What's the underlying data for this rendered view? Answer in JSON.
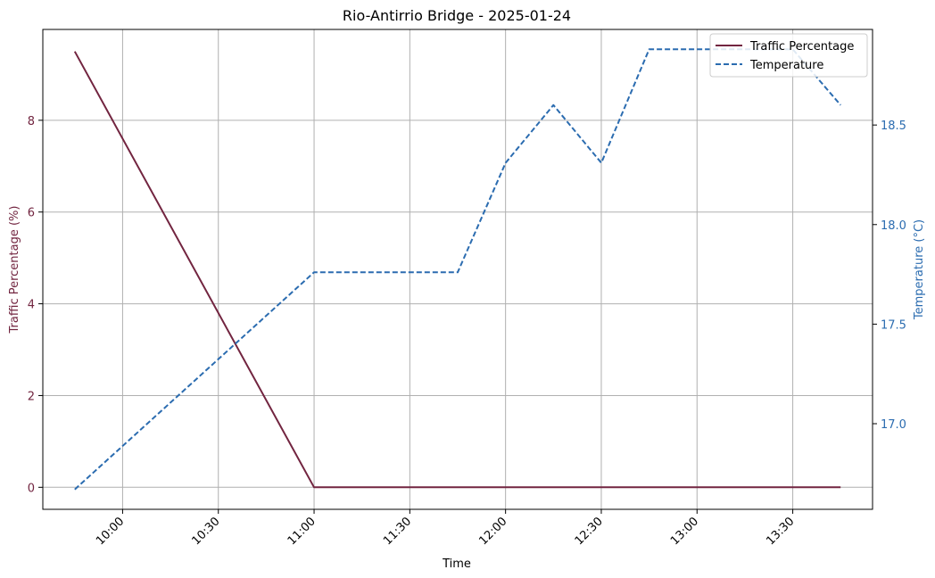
{
  "chart_data": {
    "type": "line",
    "title": "Rio-Antirrio Bridge - 2025-01-24",
    "xlabel": "Time",
    "y_left_label": "Traffic Percentage (%)",
    "y_right_label": "Temperature (°C)",
    "x_tick_labels": [
      "10:00",
      "10:30",
      "11:00",
      "11:30",
      "12:00",
      "12:30",
      "13:00",
      "13:30"
    ],
    "x_ticks": [
      "10:00",
      "10:30",
      "11:00",
      "11:30",
      "12:00",
      "12:30",
      "13:00",
      "13:30"
    ],
    "xlim": [
      "09:35",
      "13:55"
    ],
    "y_left_ticks": [
      "0",
      "2",
      "4",
      "6",
      "8"
    ],
    "y_left_lim": [
      -0.48,
      9.98
    ],
    "y_right_ticks": [
      "17.0",
      "17.5",
      "18.0",
      "18.5"
    ],
    "y_right_lim": [
      16.57,
      18.98
    ],
    "grid": true,
    "legend_position": "top-right",
    "series": [
      {
        "name": "Traffic Percentage",
        "axis": "left",
        "color": "#722540",
        "style": "solid",
        "x": [
          "09:45",
          "11:00",
          "11:15",
          "11:30",
          "11:45",
          "12:00",
          "12:15",
          "12:30",
          "12:45",
          "13:00",
          "13:15",
          "13:30",
          "13:45"
        ],
        "values": [
          9.5,
          0,
          0,
          0,
          0,
          0,
          0,
          0,
          0,
          0,
          0,
          0,
          0
        ]
      },
      {
        "name": "Temperature",
        "axis": "right",
        "color": "#2b6cb0",
        "style": "dashed",
        "x": [
          "09:45",
          "11:00",
          "11:45",
          "12:00",
          "12:15",
          "12:30",
          "12:45",
          "13:30",
          "13:45"
        ],
        "values": [
          16.67,
          17.76,
          17.76,
          18.31,
          18.6,
          18.31,
          18.88,
          18.88,
          18.6
        ]
      }
    ]
  }
}
